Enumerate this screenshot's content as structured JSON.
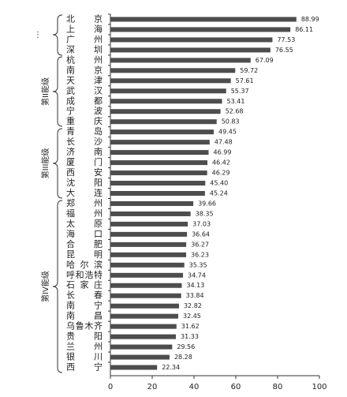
{
  "chart_data": {
    "type": "bar",
    "orientation": "horizontal",
    "categories": [
      "北京",
      "上海",
      "广州",
      "深圳",
      "杭州",
      "南京",
      "天津",
      "武汉",
      "成都",
      "宁波",
      "重庆",
      "青岛",
      "长沙",
      "济南",
      "厦门",
      "西安",
      "沈阳",
      "大连",
      "郑州",
      "福州",
      "太原",
      "海口",
      "合肥",
      "昆明",
      "哈尔滨",
      "呼和浩特",
      "石家庄",
      "长春",
      "南宁",
      "南昌",
      "乌鲁木齐",
      "贵阳",
      "兰州",
      "银川",
      "西宁"
    ],
    "values": [
      88.99,
      86.11,
      77.53,
      76.55,
      67.09,
      59.72,
      57.61,
      55.37,
      53.41,
      52.68,
      50.83,
      49.45,
      47.48,
      46.99,
      46.42,
      46.29,
      45.4,
      45.24,
      39.66,
      38.35,
      37.03,
      36.64,
      36.27,
      36.23,
      35.35,
      34.74,
      34.13,
      33.84,
      32.82,
      32.45,
      31.62,
      31.33,
      29.56,
      28.28,
      22.34
    ],
    "value_labels": [
      "88.99",
      "86.11",
      "77.53",
      "76.55",
      "67.09",
      "59.72",
      "57.61",
      "55.37",
      "53.41",
      "52.68",
      "50.83",
      "49.45",
      "47.48",
      "46.99",
      "46.42",
      "46.29",
      "45.40",
      "45.24",
      "39.66",
      "38.35",
      "37.03",
      "36.64",
      "36.27",
      "36.23",
      "35.35",
      "34.74",
      "34.13",
      "33.84",
      "32.82",
      "32.45",
      "31.62",
      "31.33",
      "29.56",
      "28.28",
      "22.34"
    ],
    "color": "#4d4d4d",
    "xlim": [
      0,
      100
    ],
    "xticks": [
      0,
      20,
      40,
      60,
      80,
      100
    ],
    "group_labels": [
      "第II能级",
      "第III能级",
      "第IV能级"
    ]
  }
}
